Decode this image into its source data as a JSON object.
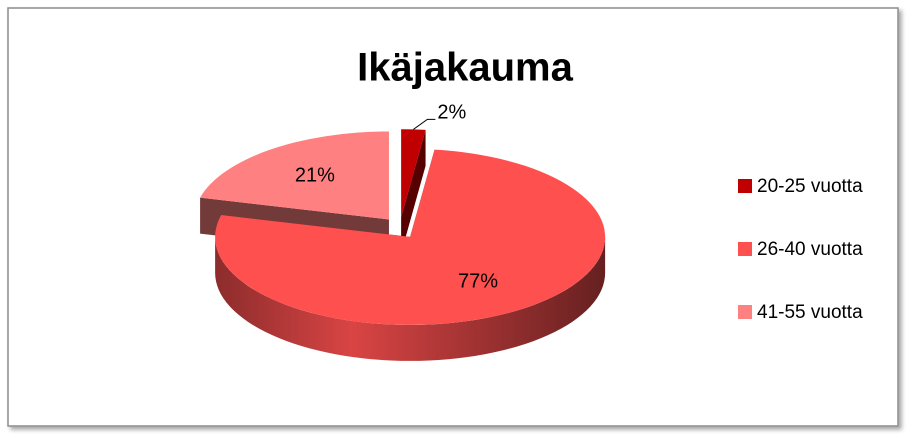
{
  "chart_data": {
    "type": "pie",
    "title": "Ikäjakauma",
    "categories": [
      "20-25 vuotta",
      "26-40 vuotta",
      "41-55 vuotta"
    ],
    "values": [
      2,
      77,
      21
    ],
    "value_labels": [
      "2%",
      "77%",
      "21%"
    ],
    "colors": [
      "#c00000",
      "#ff5050",
      "#ff8080"
    ],
    "legend": "right"
  }
}
